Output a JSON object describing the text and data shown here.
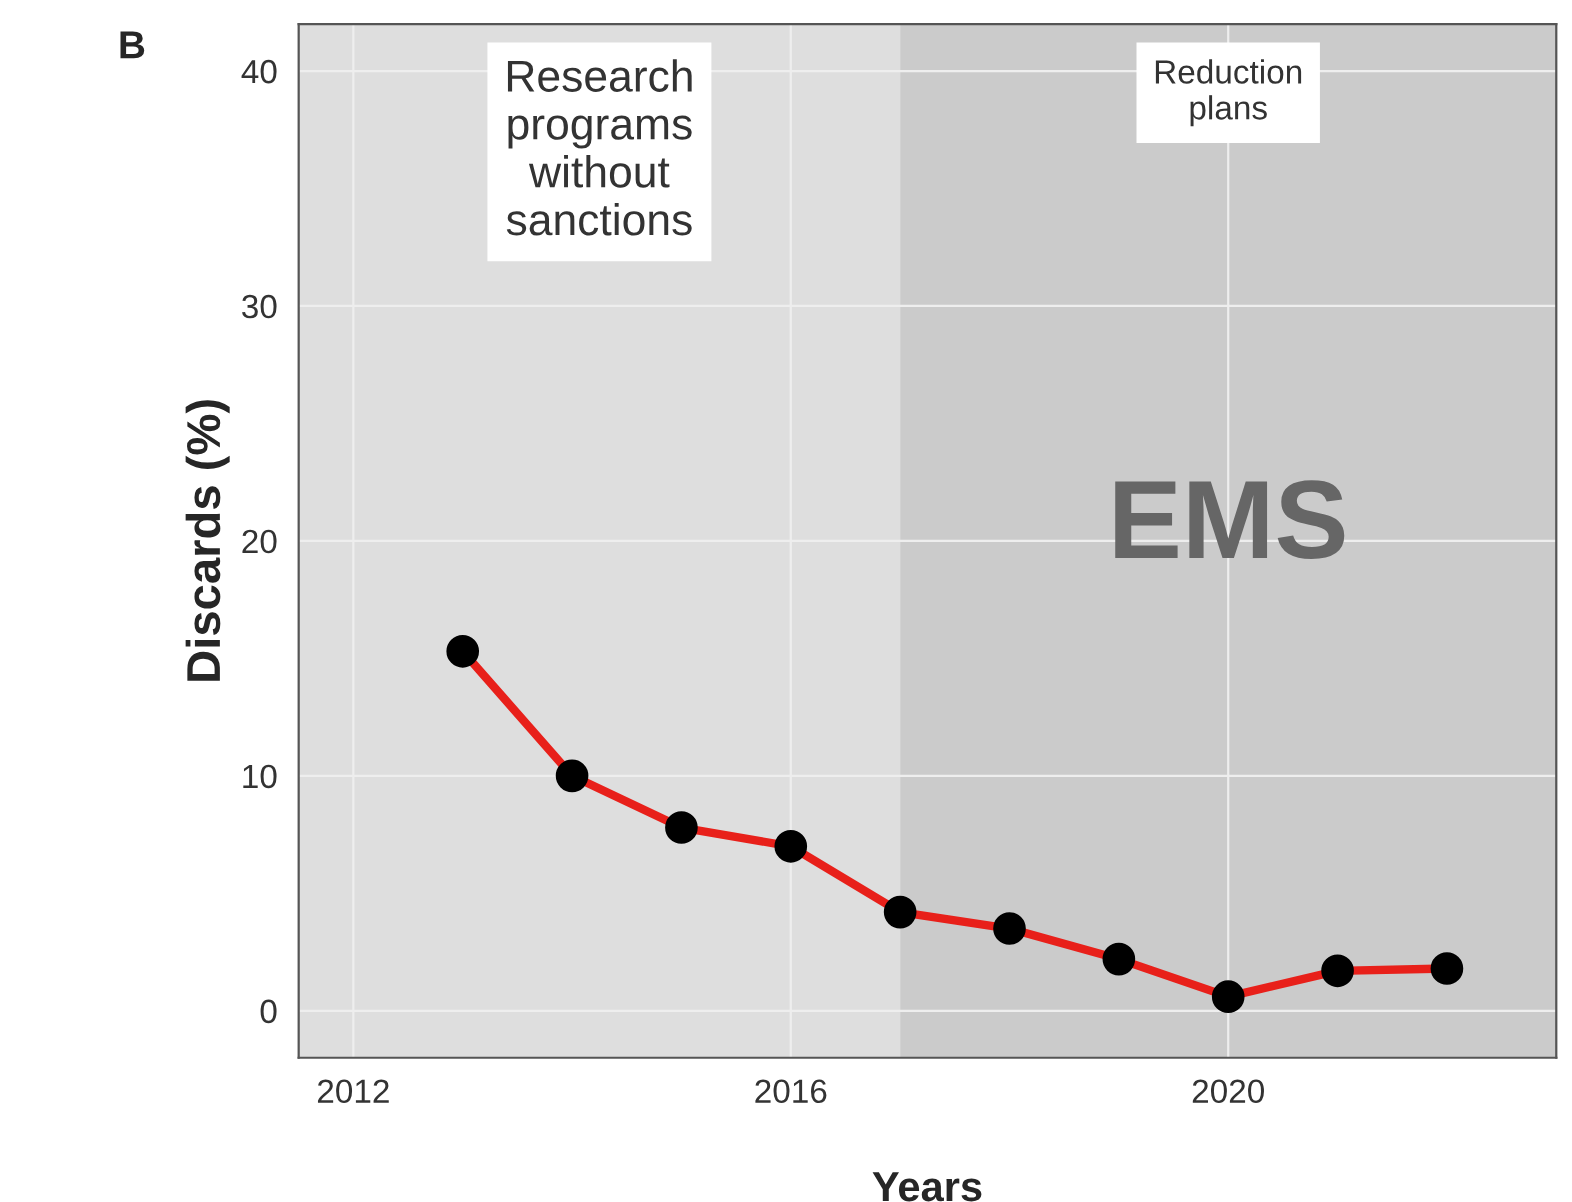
{
  "chart_data": {
    "type": "line",
    "xlabel": "Years",
    "ylabel": "Discards (%)",
    "x": [
      2013,
      2014,
      2015,
      2016,
      2017,
      2018,
      2019,
      2020,
      2021,
      2022
    ],
    "series": [
      {
        "color": "#e8201a",
        "values": [
          15.3,
          10.0,
          7.8,
          7.0,
          4.2,
          3.5,
          2.2,
          0.6,
          1.7,
          1.8
        ]
      }
    ],
    "xlim": [
      2011.5,
      2023
    ],
    "ylim": [
      -2,
      42
    ],
    "xticks": [
      2012,
      2016,
      2020
    ],
    "yticks": [
      0,
      10,
      20,
      30,
      40
    ],
    "bands": [
      {
        "axis": "x",
        "from": 2011.5,
        "to": 2017,
        "label": "Research\nprograms\nwithout\nsanctions",
        "color": "#dedede"
      },
      {
        "axis": "x",
        "from": 2017,
        "to": 2023,
        "label": "Reduction\nplans",
        "color": "#cbcbcb"
      }
    ],
    "annotations": [
      "B",
      "EMS"
    ],
    "marker": "circle",
    "line_style": "solid",
    "grid": true,
    "legend": false
  }
}
